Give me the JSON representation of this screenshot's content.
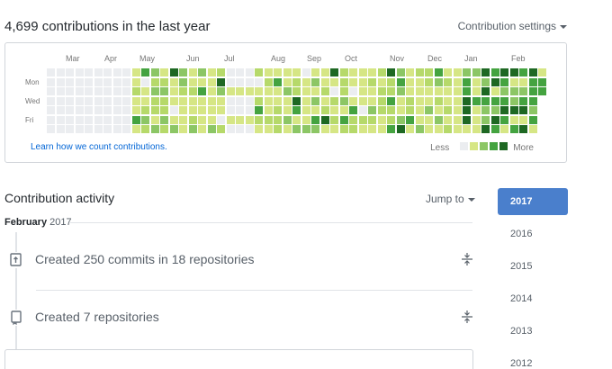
{
  "header": {
    "title": "4,699 contributions in the last year",
    "settings_label": "Contribution settings"
  },
  "graph": {
    "months": [
      "Mar",
      "Apr",
      "May",
      "Jun",
      "Jul",
      "Aug",
      "Sep",
      "Oct",
      "Nov",
      "Dec",
      "Jan",
      "Feb"
    ],
    "days": [
      "Mon",
      "Wed",
      "Fri"
    ],
    "colors": [
      "#ebedf0",
      "#d6e685",
      "#b6d96a",
      "#8cc665",
      "#44a340",
      "#1e6823"
    ],
    "learn_link": "Learn how we count contributions.",
    "legend_less": "Less",
    "legend_more": "More"
  },
  "activity": {
    "title": "Contribution activity",
    "jump_label": "Jump to",
    "month": "February",
    "year": "2017",
    "items": [
      {
        "icon": "repo-push-icon",
        "text": "Created 250 commits in 18 repositories"
      },
      {
        "icon": "repo-icon",
        "text": "Created 7 repositories"
      }
    ]
  },
  "years": [
    "2017",
    "2016",
    "2015",
    "2014",
    "2013",
    "2012"
  ],
  "active_year": "2017"
}
